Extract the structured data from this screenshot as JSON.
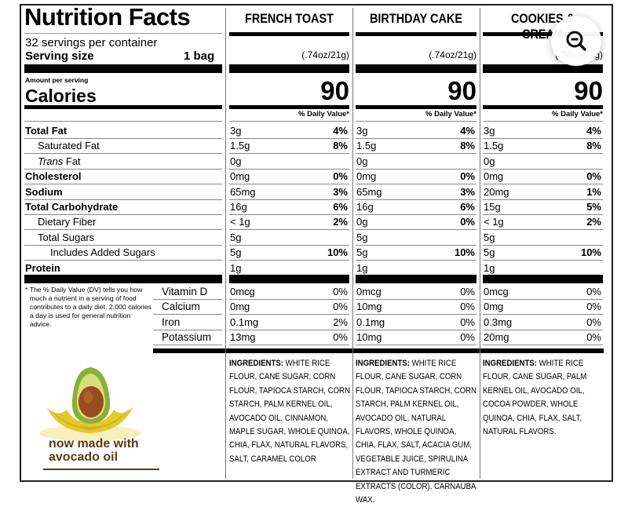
{
  "label": {
    "title": "Nutrition Facts",
    "servings": "32 servings per container",
    "serving_size_label": "Serving size",
    "serving_size_value": "1 bag",
    "amount_per_serving": "Amount per serving",
    "calories_label": "Calories",
    "daily_value_header": "% Daily Value*",
    "nutrients": [
      {
        "label": "Total Fat",
        "bold": true,
        "indent": 0
      },
      {
        "label": "Saturated Fat",
        "bold": false,
        "indent": 1
      },
      {
        "label": "Trans Fat",
        "bold": false,
        "indent": 1
      },
      {
        "label": "Cholesterol",
        "bold": true,
        "indent": 0
      },
      {
        "label": "Sodium",
        "bold": true,
        "indent": 0
      },
      {
        "label": "Total Carbohydrate",
        "bold": true,
        "indent": 0
      },
      {
        "label": "Dietary Fiber",
        "bold": false,
        "indent": 1
      },
      {
        "label": "Total Sugars",
        "bold": false,
        "indent": 1
      },
      {
        "label": "Includes Added Sugars",
        "bold": false,
        "indent": 2
      },
      {
        "label": "Protein",
        "bold": true,
        "indent": 0
      }
    ],
    "vitamins": [
      "Vitamin D",
      "Calcium",
      "Iron",
      "Potassium"
    ],
    "footnote": "* The % Daily Value (DV) tells you how much a nutrient in a serving of food contributes to a daily diet. 2,000 calories a day is used for general nutrition advice.",
    "promo_line1": "now made with",
    "promo_line2": "avocado oil",
    "ingredients_label": "INGREDIENTS:"
  },
  "products": [
    {
      "name": "FRENCH TOAST",
      "serving": "(.74oz/21g)",
      "calories": "90",
      "nutrients": [
        [
          "3g",
          "4%"
        ],
        [
          "1.5g",
          "8%"
        ],
        [
          "0g",
          ""
        ],
        [
          "0mg",
          "0%"
        ],
        [
          "65mg",
          "3%"
        ],
        [
          "16g",
          "6%"
        ],
        [
          "< 1g",
          "2%"
        ],
        [
          "5g",
          ""
        ],
        [
          "5g",
          "10%"
        ],
        [
          "1g",
          ""
        ]
      ],
      "vitamins": [
        [
          "0mcg",
          "0%"
        ],
        [
          "0mg",
          "0%"
        ],
        [
          "0.1mg",
          "2%"
        ],
        [
          "13mg",
          "0%"
        ]
      ],
      "ingredients": "WHITE RICE FLOUR, CANE SUGAR, CORN FLOUR, TAPIOCA STARCH, CORN STARCH, PALM KERNEL OIL, AVOCADO OIL, CINNAMON, MAPLE SUGAR, WHOLE QUINOA, CHIA, FLAX, NATURAL FLAVORS, SALT, CARAMEL COLOR"
    },
    {
      "name": "BIRTHDAY CAKE",
      "serving": "(.74oz/21g)",
      "calories": "90",
      "nutrients": [
        [
          "3g",
          "4%"
        ],
        [
          "1.5g",
          "8%"
        ],
        [
          "0g",
          ""
        ],
        [
          "0mg",
          "0%"
        ],
        [
          "65mg",
          "3%"
        ],
        [
          "16g",
          "6%"
        ],
        [
          "0g",
          "0%"
        ],
        [
          "5g",
          ""
        ],
        [
          "5g",
          "10%"
        ],
        [
          "1g",
          ""
        ]
      ],
      "vitamins": [
        [
          "0mcg",
          "0%"
        ],
        [
          "10mg",
          "0%"
        ],
        [
          "0.1mg",
          "0%"
        ],
        [
          "10mg",
          "0%"
        ]
      ],
      "ingredients": "WHITE RICE FLOUR, CANE SUGAR, CORN FLOUR, TAPIOCA STARCH, CORN STARCH, PALM KERNEL OIL, AVOCADO OIL, NATURAL FLAVORS, WHOLE QUINOA, CHIA, FLAX, SALT, ACACIA GUM, VEGETABLE JUICE, SPIRULINA EXTRACT AND TURMERIC EXTRACTS (COLOR), CARNAUBA WAX."
    },
    {
      "name": "COOKIES & CREAM",
      "serving": "(.74oz/21g)",
      "calories": "90",
      "nutrients": [
        [
          "3g",
          "4%"
        ],
        [
          "1.5g",
          "8%"
        ],
        [
          "0g",
          ""
        ],
        [
          "0mg",
          "0%"
        ],
        [
          "20mg",
          "1%"
        ],
        [
          "15g",
          "5%"
        ],
        [
          "< 1g",
          "2%"
        ],
        [
          "5g",
          ""
        ],
        [
          "5g",
          "10%"
        ],
        [
          "1g",
          ""
        ]
      ],
      "vitamins": [
        [
          "0mcg",
          "0%"
        ],
        [
          "0mg",
          "0%"
        ],
        [
          "0.3mg",
          "0%"
        ],
        [
          "20mg",
          "0%"
        ]
      ],
      "ingredients": "WHITE RICE FLOUR, CANE SUGAR, PALM KERNEL OIL, AVOCADO OIL, COCOA POWDER, WHOLE QUINOA, CHIA, FLAX, SALT, NATURAL FLAVORS."
    }
  ],
  "viewer": {
    "zoom_out_icon": "zoom-out-icon"
  },
  "colors": {
    "promo_text": "#5a3a1a"
  }
}
